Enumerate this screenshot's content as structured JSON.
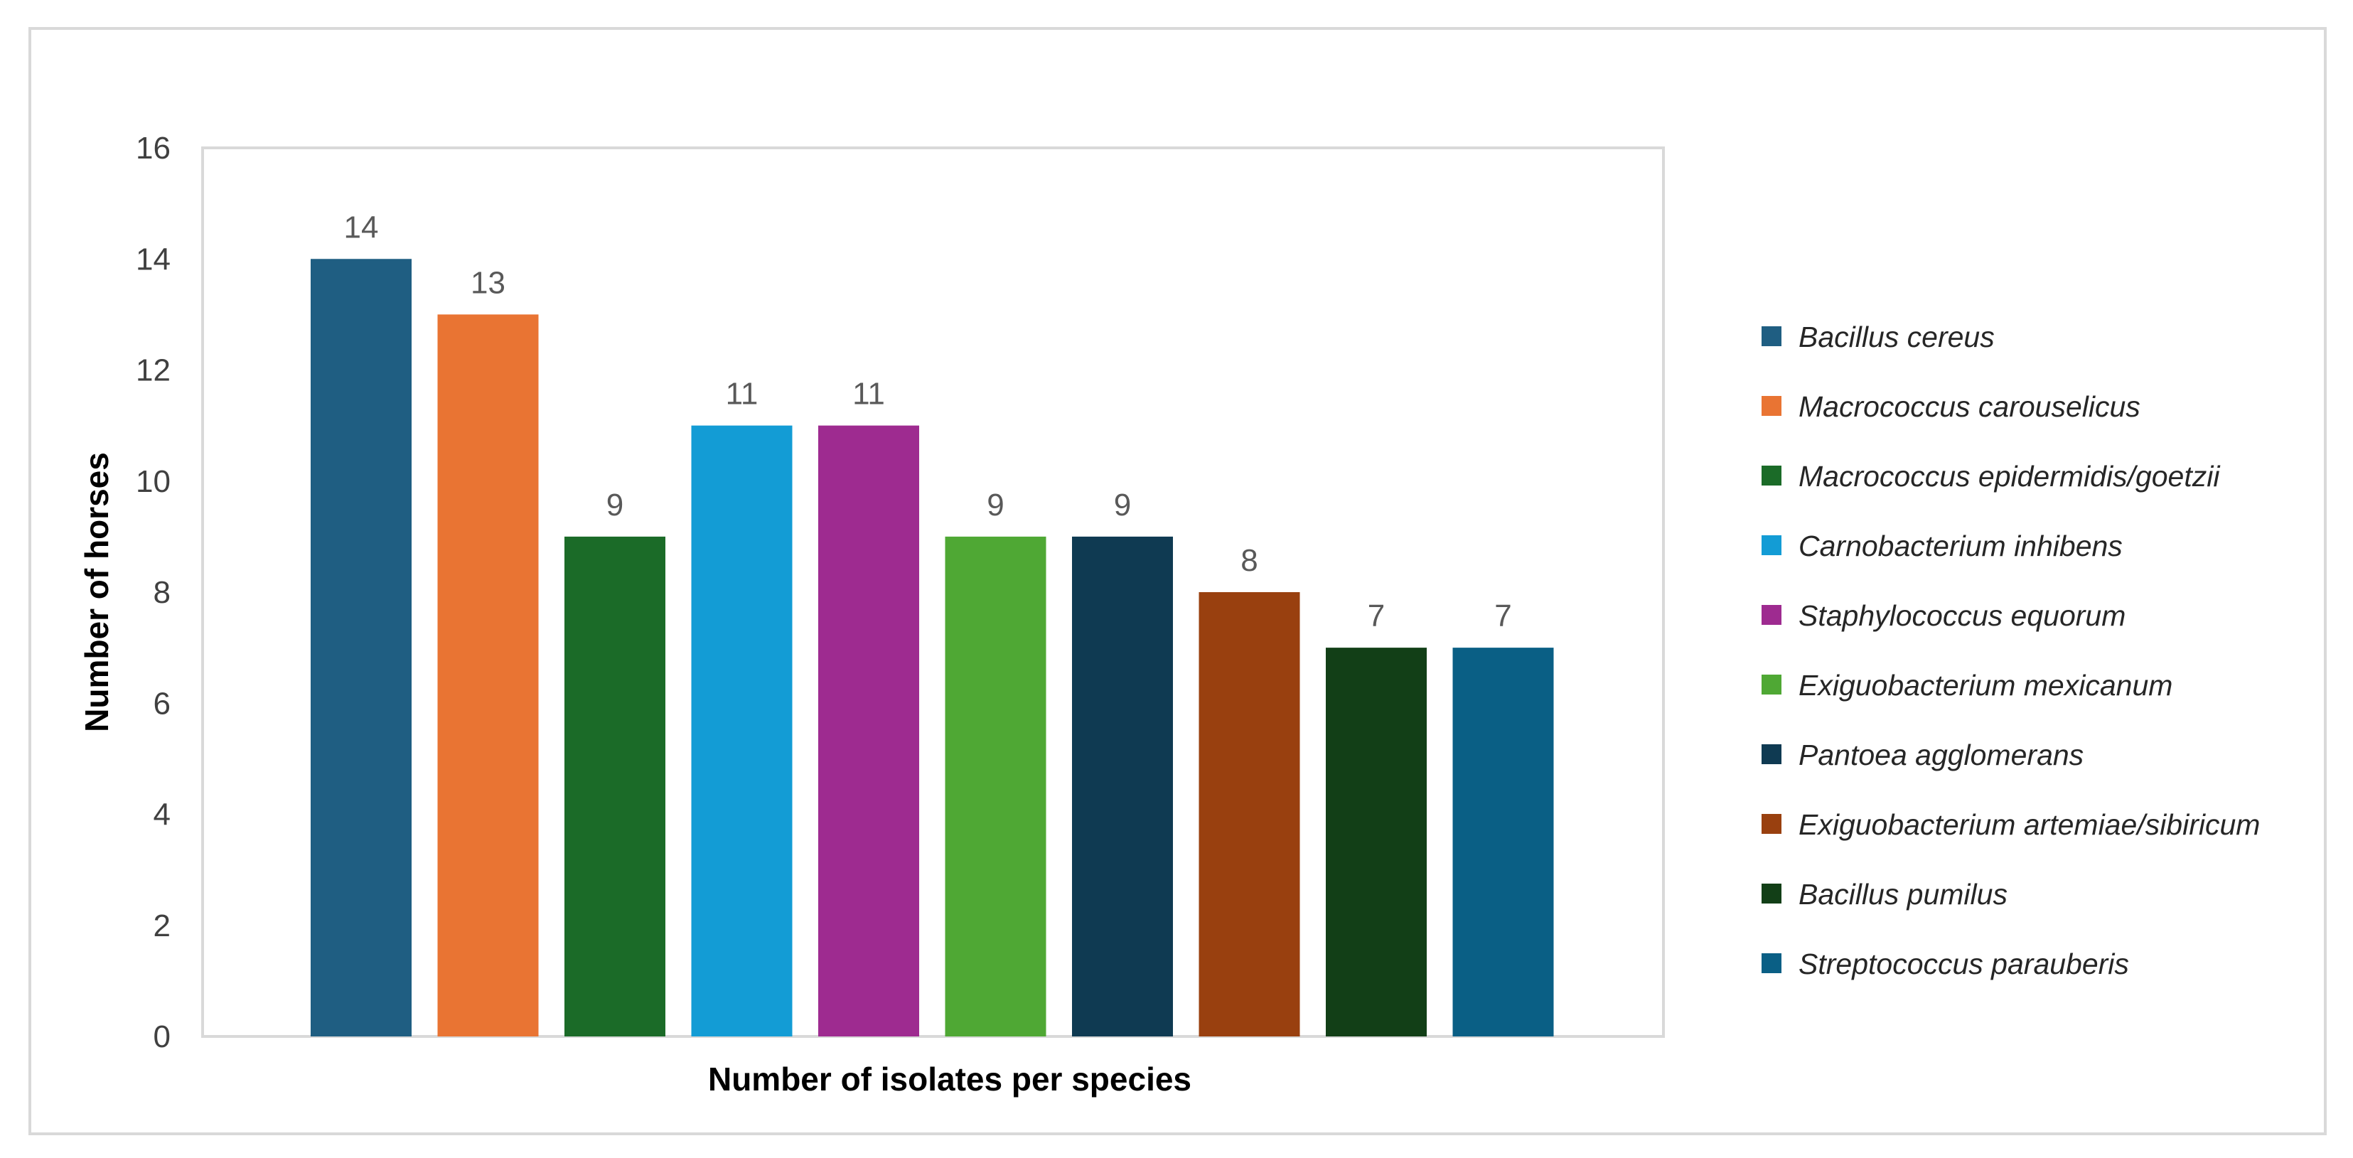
{
  "chart_data": {
    "type": "bar",
    "title": "",
    "xlabel": "Number of isolates per species",
    "ylabel": "Number of  horses",
    "ylim": [
      0,
      16
    ],
    "yticks": [
      0,
      2,
      4,
      6,
      8,
      10,
      12,
      14,
      16
    ],
    "grid": false,
    "legend_position": "right",
    "categories": [
      "Bacillus cereus",
      "Macrococcus carouselicus",
      "Macrococcus epidermidis/goetzii",
      "Carnobacterium inhibens",
      "Staphylococcus equorum",
      "Exiguobacterium mexicanum",
      "Pantoea agglomerans",
      "Exiguobacterium artemiae/sibiricum",
      "Bacillus pumilus",
      "Streptococcus parauberis"
    ],
    "values": [
      14,
      13,
      9,
      11,
      11,
      9,
      9,
      8,
      7,
      7
    ],
    "colors": [
      "#1f5e82",
      "#e97433",
      "#1b6b28",
      "#139cd5",
      "#9e2b90",
      "#4fa834",
      "#0f3a52",
      "#99400f",
      "#123f17",
      "#0a5f85"
    ]
  }
}
